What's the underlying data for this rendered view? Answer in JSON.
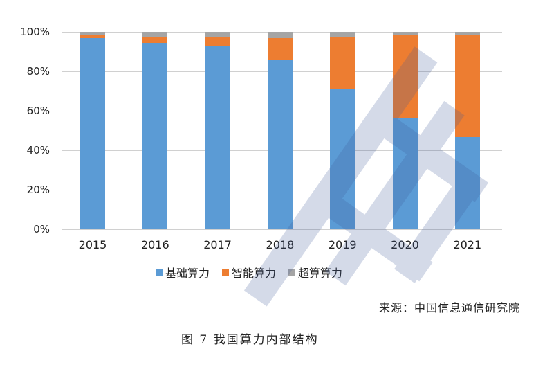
{
  "chart_data": {
    "type": "bar",
    "stacked": true,
    "title": "",
    "xlabel": "",
    "ylabel": "",
    "ylim": [
      0,
      100
    ],
    "yticks": [
      "0%",
      "20%",
      "40%",
      "60%",
      "80%",
      "100%"
    ],
    "categories": [
      "2015",
      "2016",
      "2017",
      "2018",
      "2019",
      "2020",
      "2021"
    ],
    "series": [
      {
        "name": "基础算力",
        "color": "#5b9bd5",
        "values": [
          97.0,
          94.5,
          92.5,
          86.0,
          71.2,
          56.5,
          46.8
        ]
      },
      {
        "name": "智能算力",
        "color": "#ed7d31",
        "values": [
          1.3,
          2.7,
          4.7,
          10.8,
          26.0,
          41.7,
          51.8
        ]
      },
      {
        "name": "超算算力",
        "color": "#a5a5a5",
        "values": [
          1.7,
          2.8,
          2.8,
          3.2,
          2.8,
          1.8,
          1.4
        ]
      }
    ],
    "legend_position": "bottom",
    "grid": true
  },
  "legend": {
    "items": [
      {
        "label": "基础算力",
        "color": "#5b9bd5"
      },
      {
        "label": "智能算力",
        "color": "#ed7d31"
      },
      {
        "label": "超算算力",
        "color": "#a5a5a5"
      }
    ]
  },
  "source": "来源：中国信息通信研究院",
  "caption": "图 7 我国算力内部结构"
}
